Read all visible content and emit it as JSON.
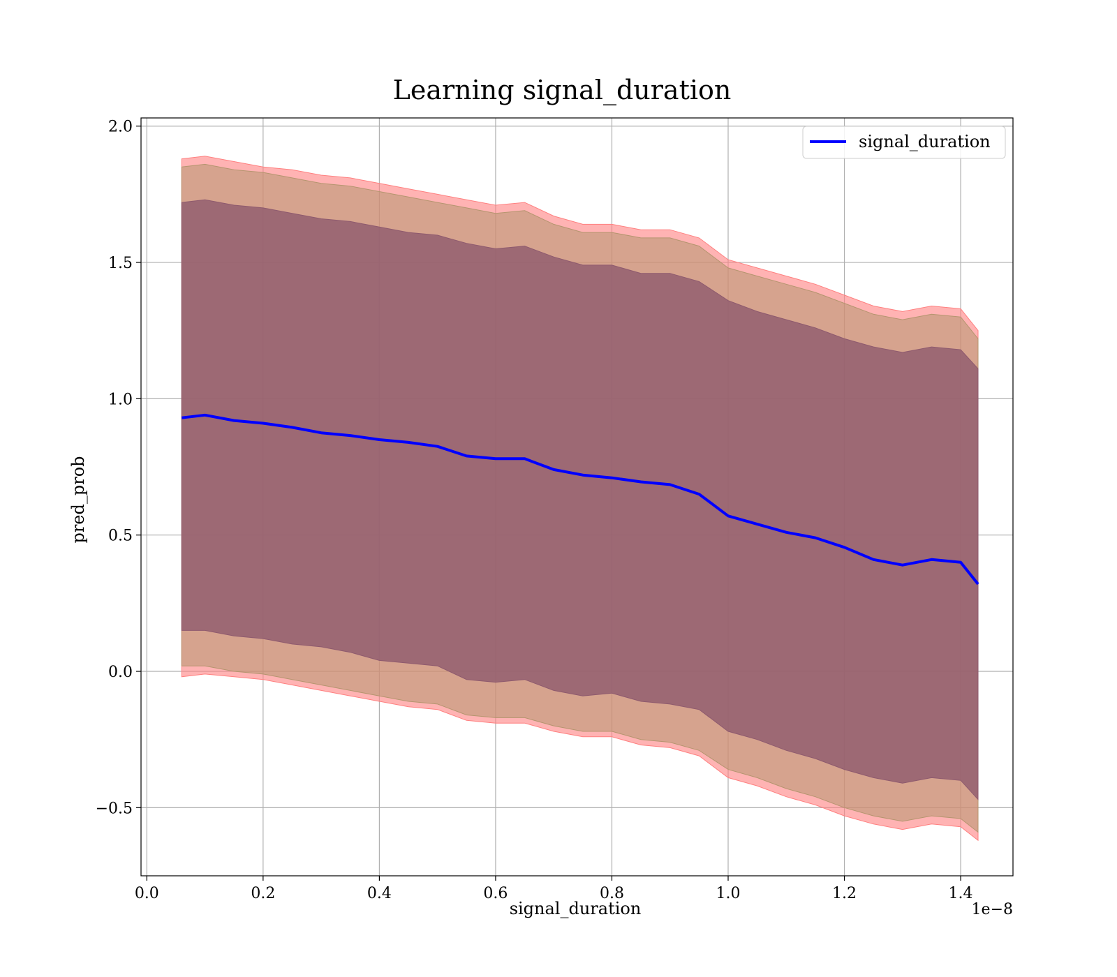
{
  "chart_data": {
    "type": "line",
    "title": "Learning signal_duration",
    "xlabel": "signal_duration",
    "ylabel": "pred_prob",
    "x_offset_label": "1e−8",
    "xlim": [
      -0.01,
      1.49
    ],
    "ylim": [
      -0.75,
      2.03
    ],
    "x_ticks": [
      0.0,
      0.2,
      0.4,
      0.6,
      0.8,
      1.0,
      1.2,
      1.4
    ],
    "x_tick_labels": [
      "0.0",
      "0.2",
      "0.4",
      "0.6",
      "0.8",
      "1.0",
      "1.2",
      "1.4"
    ],
    "y_ticks": [
      -0.5,
      0.0,
      0.5,
      1.0,
      1.5,
      2.0
    ],
    "y_tick_labels": [
      "−0.5",
      "0.0",
      "0.5",
      "1.0",
      "1.5",
      "2.0"
    ],
    "grid": true,
    "legend_position": "top-right",
    "series": [
      {
        "name": "signal_duration",
        "color": "#0000ff",
        "x": [
          0.06,
          0.1,
          0.15,
          0.2,
          0.25,
          0.3,
          0.35,
          0.4,
          0.45,
          0.5,
          0.55,
          0.6,
          0.65,
          0.7,
          0.75,
          0.8,
          0.85,
          0.9,
          0.95,
          1.0,
          1.05,
          1.1,
          1.15,
          1.2,
          1.25,
          1.3,
          1.35,
          1.4,
          1.43
        ],
        "values": [
          0.93,
          0.94,
          0.92,
          0.91,
          0.895,
          0.875,
          0.865,
          0.85,
          0.84,
          0.825,
          0.79,
          0.78,
          0.78,
          0.74,
          0.72,
          0.71,
          0.695,
          0.685,
          0.65,
          0.57,
          0.54,
          0.51,
          0.49,
          0.455,
          0.41,
          0.39,
          0.41,
          0.4,
          0.32
        ]
      }
    ],
    "bands": [
      {
        "color": "#ff8080",
        "opacity": 0.6,
        "lower": [
          -0.02,
          -0.01,
          -0.02,
          -0.03,
          -0.05,
          -0.07,
          -0.09,
          -0.11,
          -0.13,
          -0.14,
          -0.18,
          -0.19,
          -0.19,
          -0.22,
          -0.24,
          -0.24,
          -0.27,
          -0.28,
          -0.31,
          -0.39,
          -0.42,
          -0.46,
          -0.49,
          -0.53,
          -0.56,
          -0.58,
          -0.56,
          -0.57,
          -0.62
        ],
        "upper": [
          1.88,
          1.89,
          1.87,
          1.85,
          1.84,
          1.82,
          1.81,
          1.79,
          1.77,
          1.75,
          1.73,
          1.71,
          1.72,
          1.67,
          1.64,
          1.64,
          1.62,
          1.62,
          1.59,
          1.51,
          1.48,
          1.45,
          1.42,
          1.38,
          1.34,
          1.32,
          1.34,
          1.33,
          1.25
        ]
      },
      {
        "color": "#b5956f",
        "opacity": 0.55,
        "lower": [
          0.02,
          0.02,
          0.0,
          -0.01,
          -0.03,
          -0.05,
          -0.07,
          -0.09,
          -0.11,
          -0.12,
          -0.16,
          -0.17,
          -0.17,
          -0.2,
          -0.22,
          -0.22,
          -0.25,
          -0.26,
          -0.29,
          -0.36,
          -0.39,
          -0.43,
          -0.46,
          -0.5,
          -0.53,
          -0.55,
          -0.53,
          -0.54,
          -0.59
        ],
        "upper": [
          1.85,
          1.86,
          1.84,
          1.83,
          1.81,
          1.79,
          1.78,
          1.76,
          1.74,
          1.72,
          1.7,
          1.68,
          1.69,
          1.64,
          1.61,
          1.61,
          1.59,
          1.59,
          1.56,
          1.48,
          1.45,
          1.42,
          1.39,
          1.35,
          1.31,
          1.29,
          1.31,
          1.3,
          1.22
        ]
      },
      {
        "color": "#8e5a6e",
        "opacity": 0.8,
        "lower": [
          0.15,
          0.15,
          0.13,
          0.12,
          0.1,
          0.09,
          0.07,
          0.04,
          0.03,
          0.02,
          -0.03,
          -0.04,
          -0.03,
          -0.07,
          -0.09,
          -0.08,
          -0.11,
          -0.12,
          -0.14,
          -0.22,
          -0.25,
          -0.29,
          -0.32,
          -0.36,
          -0.39,
          -0.41,
          -0.39,
          -0.4,
          -0.47
        ],
        "upper": [
          1.72,
          1.73,
          1.71,
          1.7,
          1.68,
          1.66,
          1.65,
          1.63,
          1.61,
          1.6,
          1.57,
          1.55,
          1.56,
          1.52,
          1.49,
          1.49,
          1.46,
          1.46,
          1.43,
          1.36,
          1.32,
          1.29,
          1.26,
          1.22,
          1.19,
          1.17,
          1.19,
          1.18,
          1.11
        ]
      }
    ]
  }
}
